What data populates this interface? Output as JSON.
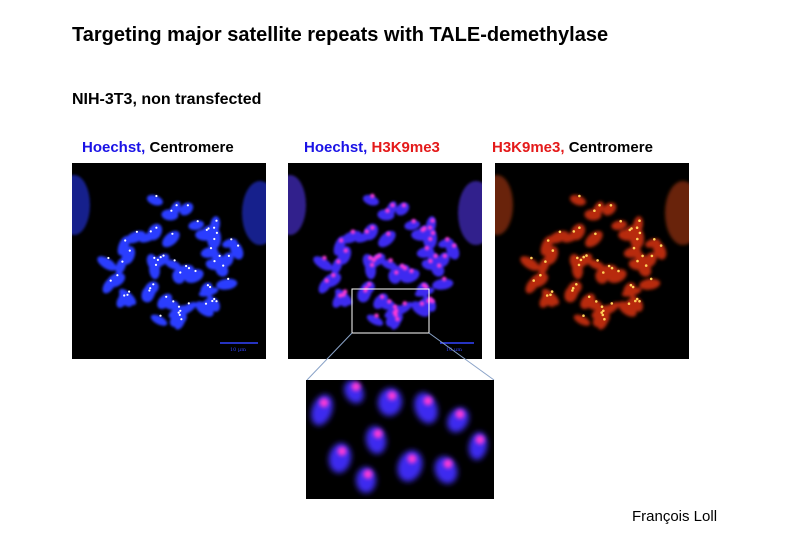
{
  "slide": {
    "title": "Targeting major satellite repeats with TALE-demethylase",
    "subtitle": "NIH-3T3, non transfected",
    "author": "François Loll"
  },
  "panels": [
    {
      "name": "hoechst-centromere",
      "caption_part1": "Hoechst, ",
      "caption_part1_color": "#1a12e6",
      "caption_part2": "Centromere",
      "caption_part2_color": "#000000",
      "scale_label": "10 µm"
    },
    {
      "name": "hoechst-h3k9me3",
      "caption_part1": "Hoechst, ",
      "caption_part1_color": "#1a12e6",
      "caption_part2": "H3K9me3",
      "caption_part2_color": "#e41a1a",
      "scale_label": "10 µm"
    },
    {
      "name": "h3k9me3-centromere",
      "caption_part1": "H3K9me3, ",
      "caption_part1_color": "#e41a1a",
      "caption_part2": "Centromere",
      "caption_part2_color": "#000000"
    }
  ],
  "colors": {
    "hoechst": "#2a3cff",
    "h3k9me3": "#ff3a2a",
    "centromere": "#ffffff",
    "background": "#000000"
  }
}
